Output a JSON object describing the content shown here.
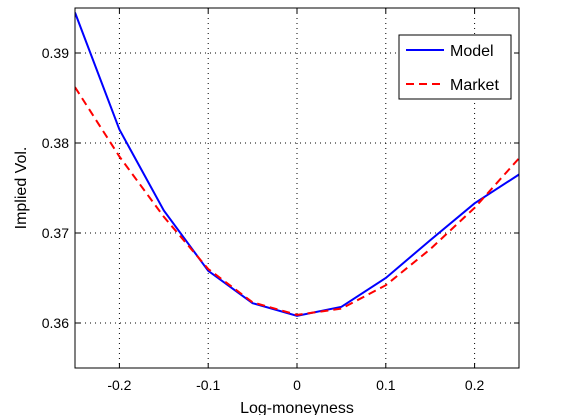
{
  "chart_data": {
    "type": "line",
    "xlabel": "Log-moneyness",
    "ylabel": "Implied Vol.",
    "xlim": [
      -0.25,
      0.25
    ],
    "ylim": [
      0.355,
      0.395
    ],
    "xticks": [
      -0.2,
      -0.1,
      0,
      0.1,
      0.2
    ],
    "xtick_labels": [
      "-0.2",
      "-0.1",
      "0",
      "0.1",
      "0.2"
    ],
    "yticks": [
      0.36,
      0.37,
      0.38,
      0.39
    ],
    "ytick_labels": [
      "0.36",
      "0.37",
      "0.38",
      "0.39"
    ],
    "grid": true,
    "legend_position": "top-right",
    "series": [
      {
        "name": "Model",
        "color": "#0000ff",
        "style": "solid",
        "x": [
          -0.25,
          -0.2,
          -0.15,
          -0.1,
          -0.05,
          0,
          0.05,
          0.1,
          0.15,
          0.2,
          0.25
        ],
        "y": [
          0.3945,
          0.3815,
          0.3725,
          0.3658,
          0.3622,
          0.3608,
          0.3618,
          0.365,
          0.3692,
          0.3733,
          0.3765
        ]
      },
      {
        "name": "Market",
        "color": "#ff0000",
        "style": "dashed",
        "x": [
          -0.25,
          -0.2,
          -0.15,
          -0.1,
          -0.05,
          0,
          0.05,
          0.1,
          0.15,
          0.2,
          0.25
        ],
        "y": [
          0.3862,
          0.3785,
          0.3718,
          0.366,
          0.3623,
          0.3609,
          0.3616,
          0.3642,
          0.3682,
          0.3728,
          0.3783
        ]
      }
    ]
  }
}
